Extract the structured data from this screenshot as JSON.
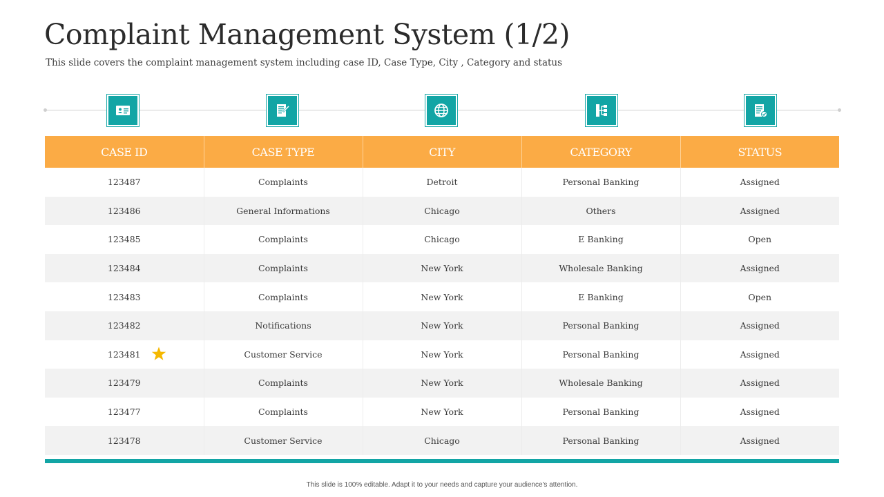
{
  "slide": {
    "title": "Complaint Management System (1/2)",
    "subtitle": "This slide covers the complaint management system including case ID, Case Type, City , Category and status",
    "footer": "This slide is 100% editable. Adapt it to your needs and capture your audience's attention."
  },
  "icons": [
    "id-card-icon",
    "document-edit-icon",
    "globe-icon",
    "hierarchy-icon",
    "document-check-icon"
  ],
  "colors": {
    "header_bg": "#fbab45",
    "accent_teal": "#12a5a5",
    "row_alt": "#f2f2f2",
    "star": "#f5b800"
  },
  "table": {
    "headers": [
      "CASE ID",
      "CASE TYPE",
      "CITY",
      "CATEGORY",
      "STATUS"
    ],
    "rows": [
      [
        "123487",
        "Complaints",
        "Detroit",
        "Personal  Banking",
        "Assigned"
      ],
      [
        "123486",
        "General  Informations",
        "Chicago",
        "Others",
        "Assigned"
      ],
      [
        "123485",
        "Complaints",
        "Chicago",
        "E Banking",
        "Open"
      ],
      [
        "123484",
        "Complaints",
        "New York",
        "Wholesale  Banking",
        "Assigned"
      ],
      [
        "123483",
        "Complaints",
        "New York",
        "E Banking",
        "Open"
      ],
      [
        "123482",
        "Notifications",
        "New York",
        "Personal  Banking",
        "Assigned"
      ],
      [
        "123481",
        "Customer  Service",
        "New York",
        "Personal  Banking",
        "Assigned"
      ],
      [
        "123479",
        "Complaints",
        "New York",
        "Wholesale  Banking",
        "Assigned"
      ],
      [
        "123477",
        "Complaints",
        "New York",
        "Personal  Banking",
        "Assigned"
      ],
      [
        "123478",
        "Customer  Service",
        "Chicago",
        "Personal  Banking",
        "Assigned"
      ]
    ]
  }
}
